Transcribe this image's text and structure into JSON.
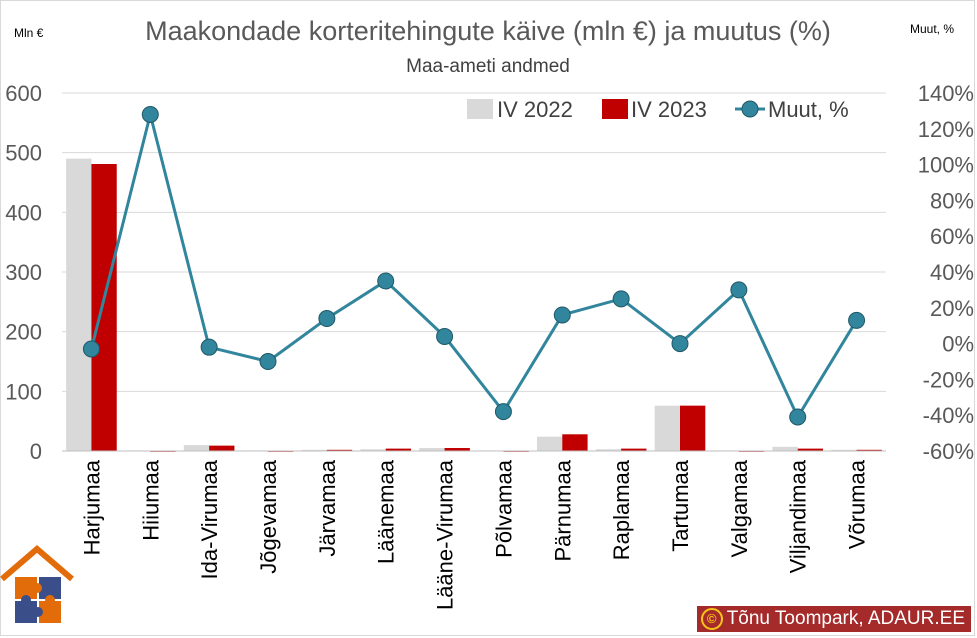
{
  "colors": {
    "iv2022": "#d9d9d9",
    "iv2023": "#c00000",
    "change": "#31859c",
    "grid": "#d9d9d9",
    "axis_text": "#595959",
    "title": "#595959",
    "credit_bg": "#a52a2a"
  },
  "logo": {
    "icon": "house-puzzle-logo"
  },
  "credit": {
    "symbol": "©",
    "text": "Tõnu Toompark, ADAUR.EE"
  },
  "chart_data": {
    "type": "bar",
    "title": "Maakondade korteritehingute käive (mln €) ja muutus (%)",
    "subtitle": "Maa-ameti andmed",
    "ylabel": "Mln €",
    "y2label": "Muut, %",
    "ylim": [
      0,
      600
    ],
    "yticks": [
      "0",
      "100",
      "200",
      "300",
      "400",
      "500",
      "600"
    ],
    "y2lim": [
      -60,
      140
    ],
    "y2ticks": [
      "-60%",
      "-40%",
      "-20%",
      "0%",
      "20%",
      "40%",
      "60%",
      "80%",
      "100%",
      "120%",
      "140%"
    ],
    "grid": true,
    "legend_position": "top-right",
    "categories": [
      "Harjumaa",
      "Hiiumaa",
      "Ida-Virumaa",
      "Jõgevamaa",
      "Järvamaa",
      "Läänemaa",
      "Lääne-Virumaa",
      "Põlvamaa",
      "Pärnumaa",
      "Raplamaa",
      "Tartumaa",
      "Valgamaa",
      "Viljandimaa",
      "Võrumaa"
    ],
    "series": [
      {
        "name": "IV 2022",
        "type": "bar",
        "axis": "left",
        "values": [
          490,
          1,
          10,
          1,
          2,
          3,
          5,
          1,
          24,
          3,
          76,
          1,
          7,
          2
        ]
      },
      {
        "name": "IV 2023",
        "type": "bar",
        "axis": "left",
        "values": [
          481,
          0,
          9,
          0,
          2,
          4,
          5,
          0,
          28,
          4,
          76,
          0,
          4,
          2
        ]
      },
      {
        "name": "Muut, %",
        "type": "line",
        "axis": "right",
        "values": [
          -3,
          128,
          -2,
          -10,
          14,
          35,
          4,
          -38,
          16,
          25,
          0,
          30,
          -41,
          13
        ]
      }
    ]
  }
}
